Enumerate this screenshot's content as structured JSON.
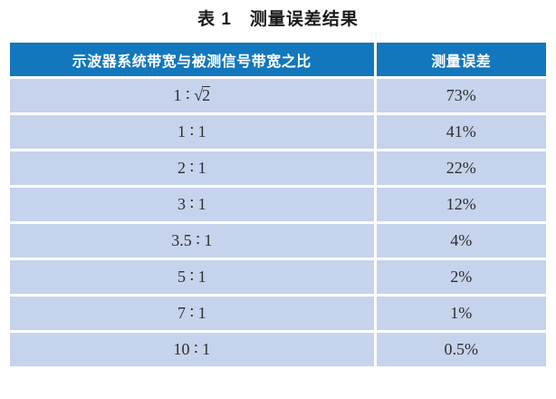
{
  "title": "表 1　测量误差结果",
  "colors": {
    "header-bg": "#1277BC",
    "header-text": "#FFFFFF",
    "row-bg": "#C6D3EC",
    "cell-text": "#2E2E2E",
    "title-text": "#1A1A1A",
    "divider": "#FFFFFF"
  },
  "table": {
    "headers": [
      "示波器系统带宽与被测信号带宽之比",
      "测量误差"
    ],
    "rows": [
      {
        "ratio": "1 ∶ √2",
        "error": "73%"
      },
      {
        "ratio": "1 ∶ 1",
        "error": "41%"
      },
      {
        "ratio": "2 ∶ 1",
        "error": "22%"
      },
      {
        "ratio": "3 ∶ 1",
        "error": "12%"
      },
      {
        "ratio": "3.5 ∶ 1",
        "error": "4%"
      },
      {
        "ratio": "5 ∶ 1",
        "error": "2%"
      },
      {
        "ratio": "7 ∶ 1",
        "error": "1%"
      },
      {
        "ratio": "10 ∶ 1",
        "error": "0.5%"
      }
    ]
  }
}
